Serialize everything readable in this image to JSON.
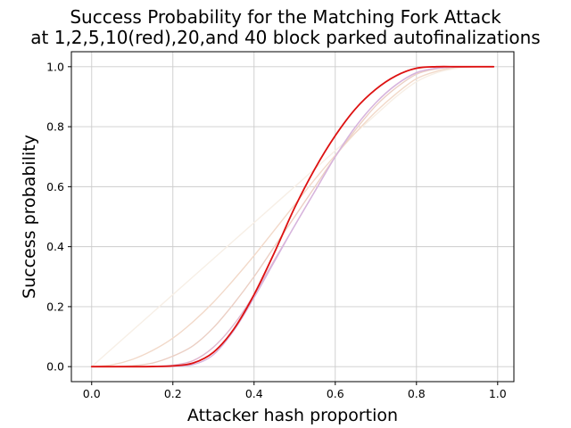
{
  "chart_data": {
    "type": "line",
    "title_line1": "Success Probability for the Matching Fork Attack",
    "title_line2": "at 1,2,5,10(red),20,and 40 block parked autofinalizations",
    "xlabel": "Attacker hash proportion",
    "ylabel": "Success probability",
    "xlim": [
      -0.05,
      1.04
    ],
    "ylim": [
      -0.05,
      1.05
    ],
    "xticks": [
      "0.0",
      "0.2",
      "0.4",
      "0.6",
      "0.8",
      "1.0"
    ],
    "yticks": [
      "0.0",
      "0.2",
      "0.4",
      "0.6",
      "0.8",
      "1.0"
    ],
    "grid": true,
    "x": [
      0.0,
      0.05,
      0.1,
      0.15,
      0.2,
      0.25,
      0.3,
      0.35,
      0.4,
      0.45,
      0.5,
      0.55,
      0.6,
      0.65,
      0.7,
      0.75,
      0.8,
      0.85,
      0.9,
      0.95,
      0.99
    ],
    "series": [
      {
        "color": "#f7efe6",
        "values": [
          0.0,
          0.06,
          0.12,
          0.18,
          0.24,
          0.3,
          0.36,
          0.42,
          0.48,
          0.54,
          0.6,
          0.66,
          0.72,
          0.78,
          0.84,
          0.9,
          0.95,
          0.98,
          0.995,
          1.0,
          1.0
        ]
      },
      {
        "color": "#f2d9c9",
        "values": [
          0.0,
          0.006,
          0.024,
          0.054,
          0.095,
          0.15,
          0.215,
          0.29,
          0.37,
          0.455,
          0.54,
          0.625,
          0.705,
          0.78,
          0.85,
          0.91,
          0.96,
          0.985,
          0.998,
          1.0,
          1.0
        ]
      },
      {
        "color": "#ebcfc4",
        "values": [
          0.0,
          0.0,
          0.003,
          0.012,
          0.035,
          0.07,
          0.13,
          0.21,
          0.3,
          0.4,
          0.5,
          0.6,
          0.7,
          0.79,
          0.87,
          0.93,
          0.975,
          0.993,
          0.999,
          1.0,
          1.0
        ]
      },
      {
        "color": "#e0b8d0",
        "values": [
          0.0,
          0.0,
          0.0,
          0.001,
          0.005,
          0.02,
          0.065,
          0.14,
          0.24,
          0.355,
          0.47,
          0.585,
          0.7,
          0.8,
          0.88,
          0.94,
          0.98,
          0.995,
          0.999,
          1.0,
          1.0
        ]
      },
      {
        "color": "#d6b4de",
        "values": [
          0.0,
          0.0,
          0.0,
          0.0,
          0.001,
          0.007,
          0.04,
          0.12,
          0.23,
          0.35,
          0.47,
          0.585,
          0.7,
          0.8,
          0.88,
          0.94,
          0.98,
          0.995,
          0.999,
          1.0,
          1.0
        ]
      },
      {
        "color": "#dd1111",
        "values": [
          0.0,
          0.0,
          0.0,
          0.0004,
          0.0025,
          0.012,
          0.048,
          0.125,
          0.24,
          0.38,
          0.53,
          0.66,
          0.77,
          0.86,
          0.925,
          0.97,
          0.995,
          1.0,
          1.0,
          1.0,
          1.0
        ]
      }
    ]
  }
}
